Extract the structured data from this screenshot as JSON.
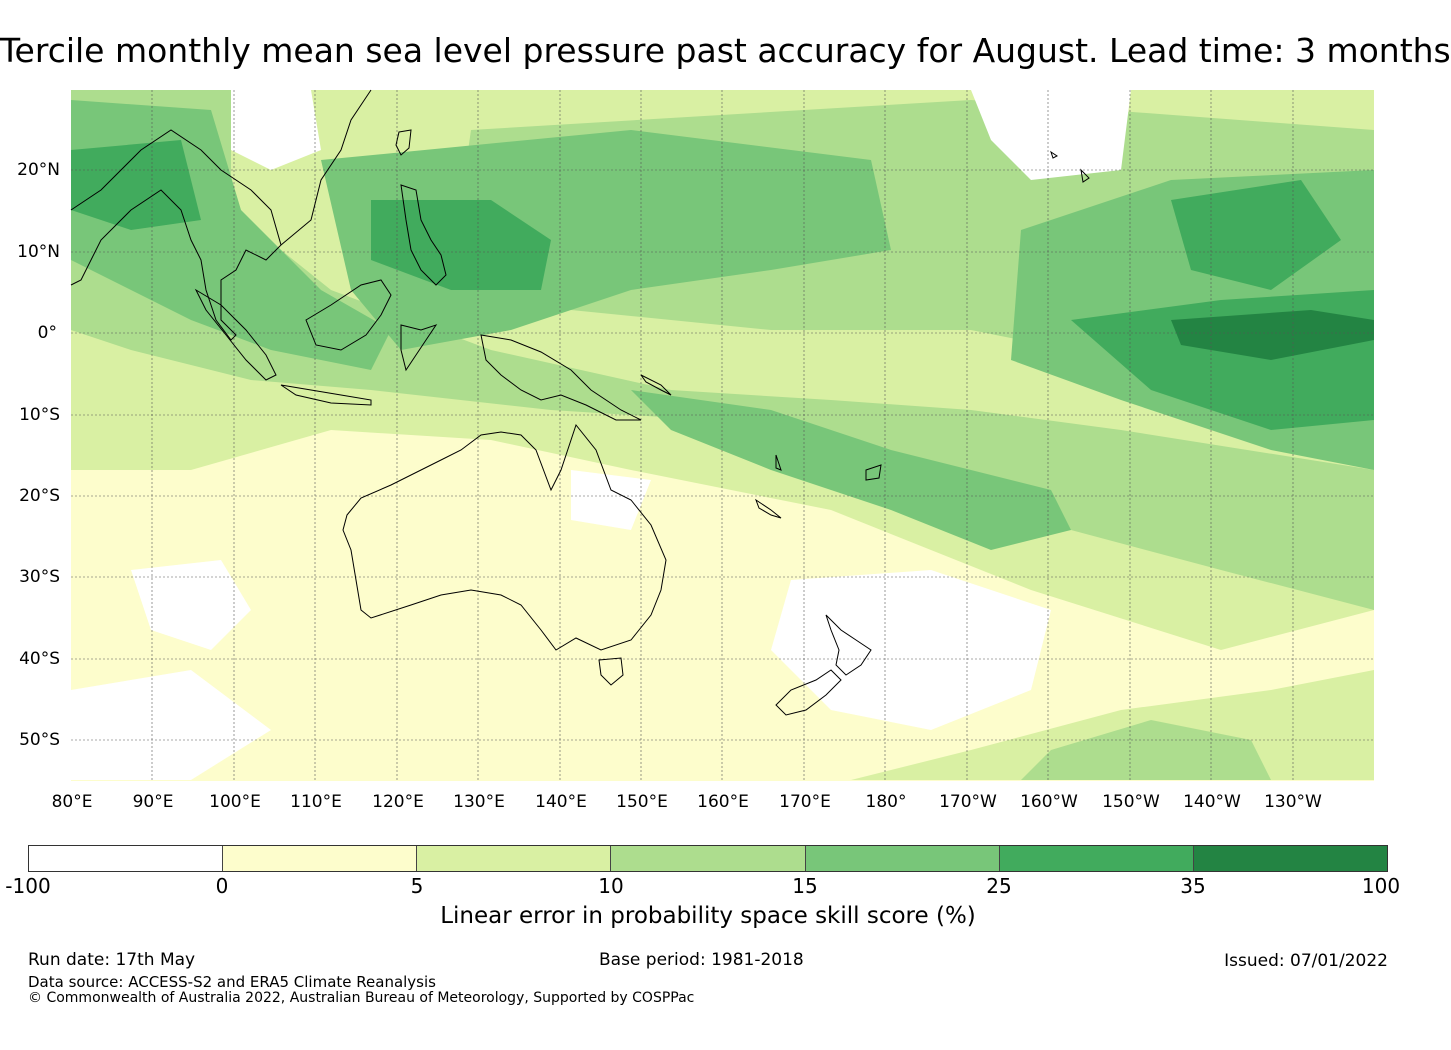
{
  "title": "Tercile monthly mean sea level pressure past accuracy for August. Lead time: 3 months",
  "map": {
    "lat_labels": [
      "20°N",
      "10°N",
      "0°",
      "10°S",
      "20°S",
      "30°S",
      "40°S",
      "50°S"
    ],
    "lon_labels": [
      "80°E",
      "90°E",
      "100°E",
      "110°E",
      "120°E",
      "130°E",
      "140°E",
      "150°E",
      "160°E",
      "170°E",
      "180°",
      "170°W",
      "160°W",
      "150°W",
      "140°W",
      "130°W"
    ]
  },
  "colorbar": {
    "ticks": [
      "-100",
      "0",
      "5",
      "10",
      "15",
      "25",
      "35",
      "100"
    ],
    "colors": [
      "#ffffff",
      "#fdfdcc",
      "#d9f0a3",
      "#addd8e",
      "#78c679",
      "#41ab5d",
      "#238443"
    ],
    "label": "Linear error in probability space skill score (%)"
  },
  "footer": {
    "run_date": "Run date: 17th May",
    "base_period": "Base period: 1981-2018",
    "issued": "Issued: 07/01/2022",
    "data_source": "Data source: ACCESS-S2 and ERA5 Climate Reanalysis",
    "copyright": "© Commonwealth of Australia 2022, Australian Bureau of Meteorology, Supported by COSPPac"
  }
}
